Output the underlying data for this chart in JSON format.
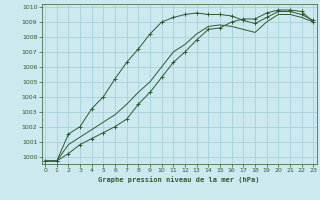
{
  "title": "Graphe pression niveau de la mer (hPa)",
  "bg_color": "#cce9f0",
  "grid_color": "#a0cdd8",
  "line_color": "#2d5a2d",
  "x_ticks": [
    0,
    1,
    2,
    3,
    4,
    5,
    6,
    7,
    8,
    9,
    10,
    11,
    12,
    13,
    14,
    15,
    16,
    17,
    18,
    19,
    20,
    21,
    22,
    23
  ],
  "y_min": 999.5,
  "y_max": 1010.2,
  "y_ticks": [
    1000,
    1001,
    1002,
    1003,
    1004,
    1005,
    1006,
    1007,
    1008,
    1009,
    1010
  ],
  "line1_x": [
    0,
    1,
    2,
    3,
    4,
    5,
    6,
    7,
    8,
    9,
    10,
    11,
    12,
    13,
    14,
    15,
    16,
    17,
    18,
    19,
    20,
    21,
    22,
    23
  ],
  "line1_y": [
    999.7,
    999.7,
    1000.8,
    1001.3,
    1001.8,
    1002.3,
    1002.8,
    1003.5,
    1004.3,
    1005.0,
    1006.0,
    1007.0,
    1007.5,
    1008.2,
    1008.7,
    1008.8,
    1008.7,
    1008.5,
    1008.3,
    1009.0,
    1009.5,
    1009.5,
    1009.3,
    1009.0
  ],
  "line2_x": [
    0,
    1,
    2,
    3,
    4,
    5,
    6,
    7,
    8,
    9,
    10,
    11,
    12,
    13,
    14,
    15,
    16,
    17,
    18,
    19,
    20,
    21,
    22,
    23
  ],
  "line2_y": [
    999.7,
    999.7,
    1001.5,
    1002.0,
    1003.2,
    1004.0,
    1005.2,
    1006.3,
    1007.2,
    1008.2,
    1009.0,
    1009.3,
    1009.5,
    1009.6,
    1009.5,
    1009.5,
    1009.4,
    1009.1,
    1008.9,
    1009.3,
    1009.7,
    1009.7,
    1009.5,
    1009.1
  ],
  "line3_x": [
    0,
    1,
    2,
    3,
    4,
    5,
    6,
    7,
    8,
    9,
    10,
    11,
    12,
    13,
    14,
    15,
    16,
    17,
    18,
    19,
    20,
    21,
    22,
    23
  ],
  "line3_y": [
    999.7,
    999.7,
    1000.2,
    1000.8,
    1001.2,
    1001.6,
    1002.0,
    1002.5,
    1003.5,
    1004.3,
    1005.3,
    1006.3,
    1007.0,
    1007.8,
    1008.5,
    1008.6,
    1009.0,
    1009.2,
    1009.2,
    1009.6,
    1009.8,
    1009.8,
    1009.7,
    1009.0
  ]
}
